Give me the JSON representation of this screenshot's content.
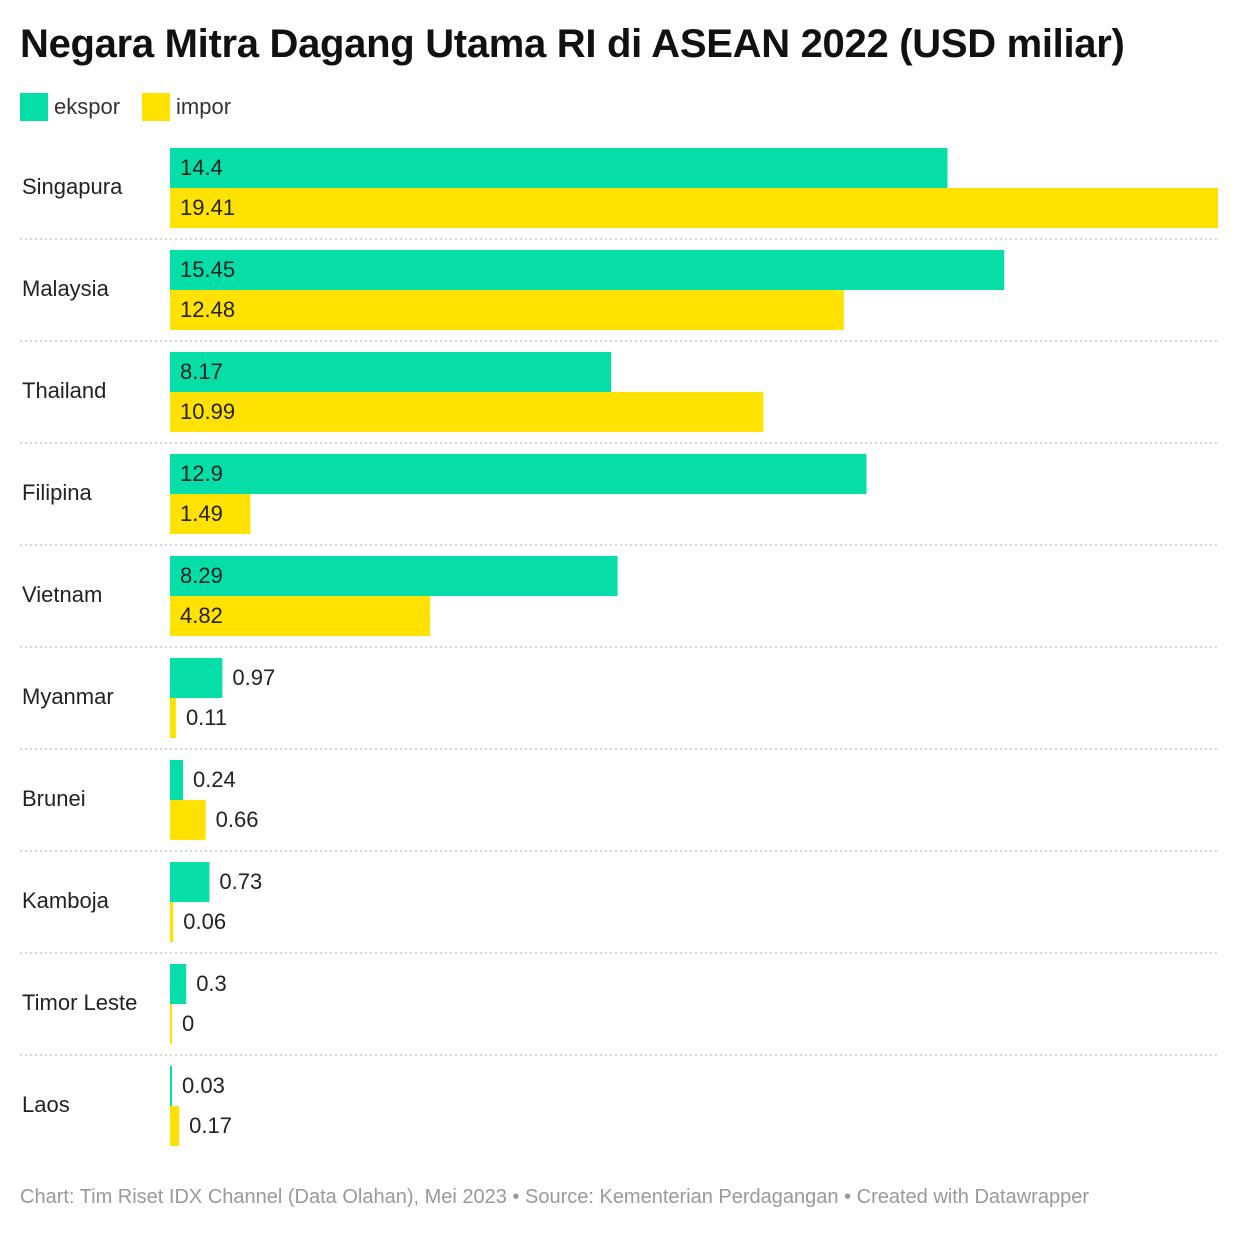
{
  "title": "Negara Mitra Dagang Utama RI di ASEAN 2022 (USD miliar)",
  "footer": "Chart: Tim Riset IDX Channel (Data Olahan), Mei 2023 • Source: Kementerian Perdagangan • Created with Datawrapper",
  "colors": {
    "ekspor": "#05dea6",
    "impor": "#ffe200",
    "grid": "#cccccc"
  },
  "chart_data": {
    "type": "bar",
    "orientation": "horizontal",
    "title": "Negara Mitra Dagang Utama RI di ASEAN 2022 (USD miliar)",
    "legend_position": "top-left",
    "categories": [
      "Singapura",
      "Malaysia",
      "Thailand",
      "Filipina",
      "Vietnam",
      "Myanmar",
      "Brunei",
      "Kamboja",
      "Timor Leste",
      "Laos"
    ],
    "series": [
      {
        "name": "ekspor",
        "color": "#05dea6",
        "values": [
          14.4,
          15.45,
          8.17,
          12.9,
          8.29,
          0.97,
          0.24,
          0.73,
          0.3,
          0.03
        ]
      },
      {
        "name": "impor",
        "color": "#ffe200",
        "values": [
          19.41,
          12.48,
          10.99,
          1.49,
          4.82,
          0.11,
          0.66,
          0.06,
          0,
          0.17
        ]
      }
    ],
    "labels": {
      "ekspor": [
        "14.4",
        "15.45",
        "8.17",
        "12.9",
        "8.29",
        "0.97",
        "0.24",
        "0.73",
        "0.3",
        "0.03"
      ],
      "impor": [
        "19.41",
        "12.48",
        "10.99",
        "1.49",
        "4.82",
        "0.11",
        "0.66",
        "0.06",
        "0",
        "0.17"
      ]
    },
    "xlim": [
      0,
      19.41
    ],
    "grid": false
  }
}
